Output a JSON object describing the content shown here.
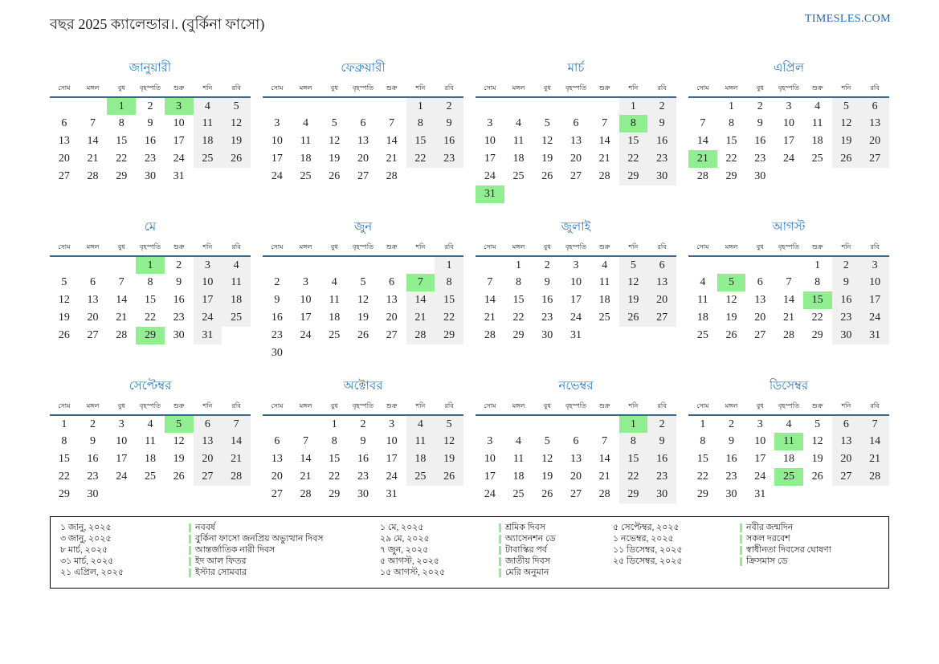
{
  "header": {
    "title": "বছর 2025 ক্যালেন্ডার।. (বুর্কিনা ফাসো)",
    "site": "TIMESLES.COM"
  },
  "weekday_headers": [
    "সোম",
    "মঙ্গল",
    "বুধ",
    "বৃহস্পতি",
    "শুক্র",
    "শনি",
    "রবি"
  ],
  "months": [
    {
      "name": "জানুয়ারী",
      "holidays": [
        1,
        3
      ],
      "weeks": [
        [
          null,
          null,
          1,
          2,
          3,
          4,
          5
        ],
        [
          6,
          7,
          8,
          9,
          10,
          11,
          12
        ],
        [
          13,
          14,
          15,
          16,
          17,
          18,
          19
        ],
        [
          20,
          21,
          22,
          23,
          24,
          25,
          26
        ],
        [
          27,
          28,
          29,
          30,
          31,
          null,
          null
        ]
      ]
    },
    {
      "name": "ফেব্রুয়ারী",
      "holidays": [],
      "weeks": [
        [
          null,
          null,
          null,
          null,
          null,
          1,
          2
        ],
        [
          3,
          4,
          5,
          6,
          7,
          8,
          9
        ],
        [
          10,
          11,
          12,
          13,
          14,
          15,
          16
        ],
        [
          17,
          18,
          19,
          20,
          21,
          22,
          23
        ],
        [
          24,
          25,
          26,
          27,
          28,
          null,
          null
        ]
      ]
    },
    {
      "name": "মার্চ",
      "holidays": [
        8,
        31
      ],
      "weeks": [
        [
          null,
          null,
          null,
          null,
          null,
          1,
          2
        ],
        [
          3,
          4,
          5,
          6,
          7,
          8,
          9
        ],
        [
          10,
          11,
          12,
          13,
          14,
          15,
          16
        ],
        [
          17,
          18,
          19,
          20,
          21,
          22,
          23
        ],
        [
          24,
          25,
          26,
          27,
          28,
          29,
          30
        ],
        [
          31,
          null,
          null,
          null,
          null,
          null,
          null
        ]
      ]
    },
    {
      "name": "এপ্রিল",
      "holidays": [
        21
      ],
      "weeks": [
        [
          null,
          1,
          2,
          3,
          4,
          5,
          6
        ],
        [
          7,
          8,
          9,
          10,
          11,
          12,
          13
        ],
        [
          14,
          15,
          16,
          17,
          18,
          19,
          20
        ],
        [
          21,
          22,
          23,
          24,
          25,
          26,
          27
        ],
        [
          28,
          29,
          30,
          null,
          null,
          null,
          null
        ]
      ]
    },
    {
      "name": "মে",
      "holidays": [
        1,
        29
      ],
      "weeks": [
        [
          null,
          null,
          null,
          1,
          2,
          3,
          4
        ],
        [
          5,
          6,
          7,
          8,
          9,
          10,
          11
        ],
        [
          12,
          13,
          14,
          15,
          16,
          17,
          18
        ],
        [
          19,
          20,
          21,
          22,
          23,
          24,
          25
        ],
        [
          26,
          27,
          28,
          29,
          30,
          31,
          null
        ]
      ]
    },
    {
      "name": "জুন",
      "holidays": [
        7
      ],
      "weeks": [
        [
          null,
          null,
          null,
          null,
          null,
          null,
          1
        ],
        [
          2,
          3,
          4,
          5,
          6,
          7,
          8
        ],
        [
          9,
          10,
          11,
          12,
          13,
          14,
          15
        ],
        [
          16,
          17,
          18,
          19,
          20,
          21,
          22
        ],
        [
          23,
          24,
          25,
          26,
          27,
          28,
          29
        ],
        [
          30,
          null,
          null,
          null,
          null,
          null,
          null
        ]
      ]
    },
    {
      "name": "জুলাই",
      "holidays": [],
      "weeks": [
        [
          null,
          1,
          2,
          3,
          4,
          5,
          6
        ],
        [
          7,
          8,
          9,
          10,
          11,
          12,
          13
        ],
        [
          14,
          15,
          16,
          17,
          18,
          19,
          20
        ],
        [
          21,
          22,
          23,
          24,
          25,
          26,
          27
        ],
        [
          28,
          29,
          30,
          31,
          null,
          null,
          null
        ]
      ]
    },
    {
      "name": "আগস্ট",
      "holidays": [
        5,
        15
      ],
      "weeks": [
        [
          null,
          null,
          null,
          null,
          1,
          2,
          3
        ],
        [
          4,
          5,
          6,
          7,
          8,
          9,
          10
        ],
        [
          11,
          12,
          13,
          14,
          15,
          16,
          17
        ],
        [
          18,
          19,
          20,
          21,
          22,
          23,
          24
        ],
        [
          25,
          26,
          27,
          28,
          29,
          30,
          31
        ]
      ]
    },
    {
      "name": "সেপ্টেম্বর",
      "holidays": [
        5
      ],
      "weeks": [
        [
          1,
          2,
          3,
          4,
          5,
          6,
          7
        ],
        [
          8,
          9,
          10,
          11,
          12,
          13,
          14
        ],
        [
          15,
          16,
          17,
          18,
          19,
          20,
          21
        ],
        [
          22,
          23,
          24,
          25,
          26,
          27,
          28
        ],
        [
          29,
          30,
          null,
          null,
          null,
          null,
          null
        ]
      ]
    },
    {
      "name": "অক্টোবর",
      "holidays": [],
      "weeks": [
        [
          null,
          null,
          1,
          2,
          3,
          4,
          5
        ],
        [
          6,
          7,
          8,
          9,
          10,
          11,
          12
        ],
        [
          13,
          14,
          15,
          16,
          17,
          18,
          19
        ],
        [
          20,
          21,
          22,
          23,
          24,
          25,
          26
        ],
        [
          27,
          28,
          29,
          30,
          31,
          null,
          null
        ]
      ]
    },
    {
      "name": "নভেম্বর",
      "holidays": [
        1
      ],
      "weeks": [
        [
          null,
          null,
          null,
          null,
          null,
          1,
          2
        ],
        [
          3,
          4,
          5,
          6,
          7,
          8,
          9
        ],
        [
          10,
          11,
          12,
          13,
          14,
          15,
          16
        ],
        [
          17,
          18,
          19,
          20,
          21,
          22,
          23
        ],
        [
          24,
          25,
          26,
          27,
          28,
          29,
          30
        ]
      ]
    },
    {
      "name": "ডিসেম্বর",
      "holidays": [
        11,
        25
      ],
      "weeks": [
        [
          1,
          2,
          3,
          4,
          5,
          6,
          7
        ],
        [
          8,
          9,
          10,
          11,
          12,
          13,
          14
        ],
        [
          15,
          16,
          17,
          18,
          19,
          20,
          21
        ],
        [
          22,
          23,
          24,
          25,
          26,
          27,
          28
        ],
        [
          29,
          30,
          31,
          null,
          null,
          null,
          null
        ]
      ]
    }
  ],
  "legend": {
    "groups": [
      [
        {
          "date": "১ জানু, ২০২৫",
          "name": "নববর্ষ"
        },
        {
          "date": "৩ জানু, ২০২৫",
          "name": "বুর্কিনা ফাসো জনপ্রিয় অভ্যুত্থান দিবস"
        },
        {
          "date": "৮ মার্চ, ২০২৫",
          "name": "আন্তর্জাতিক নারী দিবস"
        },
        {
          "date": "৩১ মার্চ, ২০২৫",
          "name": "ইদ আল ফিতর"
        },
        {
          "date": "২১ এপ্রিল, ২০২৫",
          "name": "ইস্টার সোমবার"
        }
      ],
      [
        {
          "date": "১ মে, ২০২৫",
          "name": "শ্রমিক দিবস"
        },
        {
          "date": "২৯ মে, ২০২৫",
          "name": "অ্যাসেনশন ডে"
        },
        {
          "date": "৭ জুন, ২০২৫",
          "name": "টাবাস্কির পর্ব"
        },
        {
          "date": "৫ আগস্ট, ২০২৫",
          "name": "জাতীয় দিবস"
        },
        {
          "date": "১৫ আগস্ট, ২০২৫",
          "name": "মেরি অনুমান"
        }
      ],
      [
        {
          "date": "৫ সেপ্টেম্বর, ২০২৫",
          "name": "নবীর জন্মদিন"
        },
        {
          "date": "১ নভেম্বর, ২০২৫",
          "name": "সকল দরবেশ"
        },
        {
          "date": "১১ ডিসেম্বর, ২০২৫",
          "name": "স্বাধীনতা দিবসের ঘোষণা"
        },
        {
          "date": "২৫ ডিসেম্বর, ২০২৫",
          "name": "ক্রিসমাস ডে"
        }
      ]
    ]
  },
  "colors": {
    "accent_blue": "#2e7abf",
    "rule_blue": "#3a688f",
    "holiday_green": "#90ee90",
    "weekend_gray": "#f0f0f0",
    "site_blue": "#2566ad"
  }
}
